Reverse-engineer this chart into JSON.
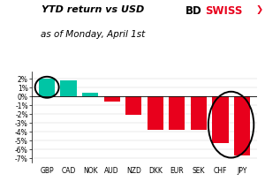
{
  "categories": [
    "GBP",
    "CAD",
    "NOK",
    "AUD",
    "NZD",
    "DKK",
    "EUR",
    "SEK",
    "CHF",
    "JPY"
  ],
  "values": [
    2.0,
    1.8,
    0.4,
    -0.6,
    -2.1,
    -3.8,
    -3.8,
    -3.8,
    -5.3,
    -6.7
  ],
  "bar_colors_positive": "#00C5A5",
  "bar_colors_negative": "#E8001C",
  "title_line1": "YTD return vs USD",
  "title_line2": "as of Monday, April 1st",
  "ylim": [
    -7.5,
    2.8
  ],
  "yticks": [
    -7,
    -6,
    -5,
    -4,
    -3,
    -2,
    -1,
    0,
    1,
    2
  ],
  "bg_color": "#FFFFFF",
  "logo_bd": "BD",
  "logo_swiss": "SWISS"
}
